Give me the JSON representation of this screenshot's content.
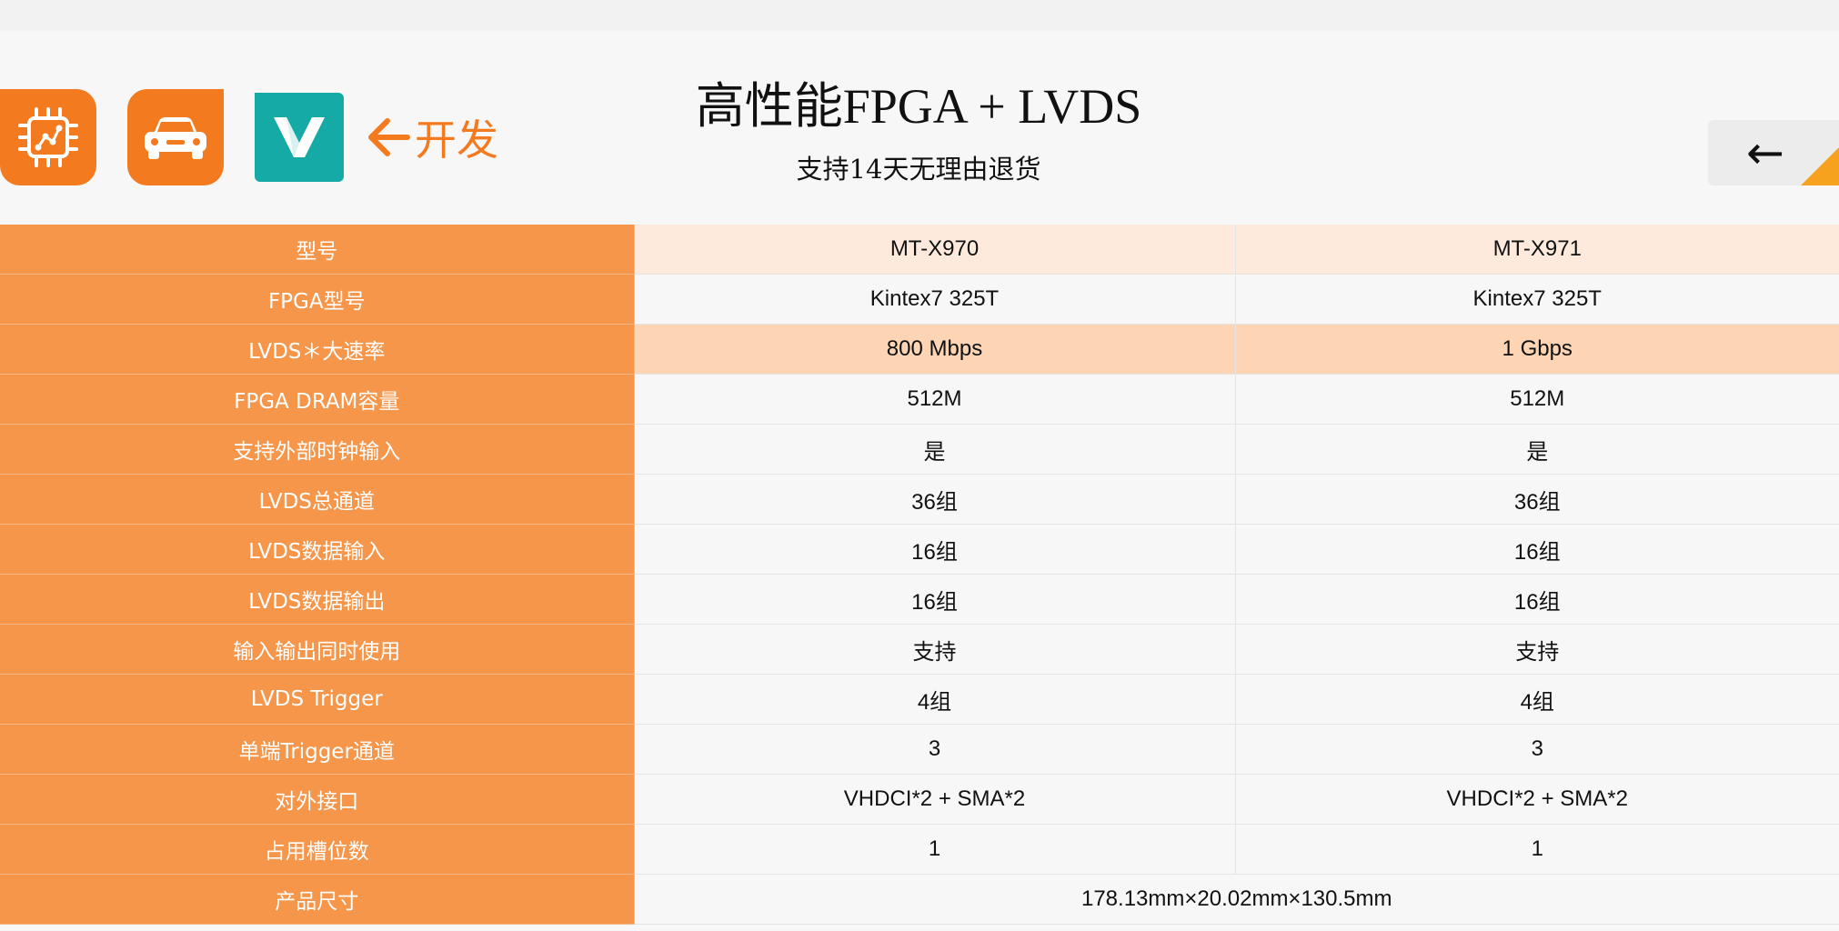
{
  "header": {
    "title": "高性能FPGA + LVDS",
    "subtitle": "支持14天无理由退货",
    "dev_link_label": "开发",
    "back_arrow": "←"
  },
  "icons": {
    "chip": "chip-circuit-icon",
    "car": "car-icon",
    "v": "v-logo-icon",
    "dev_arrow": "arrow-left-icon"
  },
  "colors": {
    "accent": "#f47a1f",
    "label_bg": "#f6964a",
    "teal": "#15aaa5",
    "highlight_row": "#fdd5b4",
    "header_row": "#fdeadc"
  },
  "table": {
    "rows": [
      {
        "label": "型号",
        "v1": "MT-X970",
        "v2": "MT-X971"
      },
      {
        "label": "FPGA型号",
        "v1": "Kintex7 325T",
        "v2": "Kintex7 325T"
      },
      {
        "label": "LVDS＊大速率",
        "v1": "800 Mbps",
        "v2": "1 Gbps"
      },
      {
        "label": "FPGA DRAM容量",
        "v1": "512M",
        "v2": "512M"
      },
      {
        "label": "支持外部时钟输入",
        "v1": "是",
        "v2": "是"
      },
      {
        "label": "LVDS总通道",
        "v1": "36组",
        "v2": "36组"
      },
      {
        "label": "LVDS数据输入",
        "v1": "16组",
        "v2": "16组"
      },
      {
        "label": "LVDS数据输出",
        "v1": "16组",
        "v2": "16组"
      },
      {
        "label": "输入输出同时使用",
        "v1": "支持",
        "v2": "支持"
      },
      {
        "label": "LVDS Trigger",
        "v1": "4组",
        "v2": "4组"
      },
      {
        "label": "单端Trigger通道",
        "v1": "3",
        "v2": "3"
      },
      {
        "label": "对外接口",
        "v1": "VHDCI*2 + SMA*2",
        "v2": "VHDCI*2 + SMA*2"
      },
      {
        "label": "占用槽位数",
        "v1": "1",
        "v2": "1"
      }
    ],
    "size_row": {
      "label": "产品尺寸",
      "value": "178.13mm×20.02mm×130.5mm"
    }
  }
}
